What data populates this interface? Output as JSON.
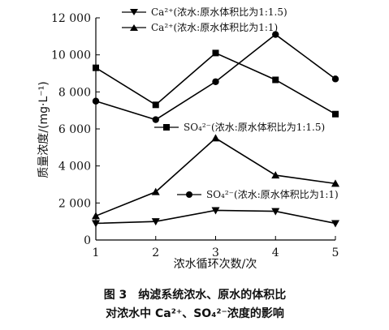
{
  "chart_data": {
    "type": "line",
    "xlabel": "浓水循环次数/次",
    "ylabel": "质量浓度/(mg·L⁻¹)",
    "x": [
      1,
      2,
      3,
      4,
      5
    ],
    "xlim": [
      1,
      5
    ],
    "ylim": [
      0,
      12000
    ],
    "yticks": [
      0,
      2000,
      4000,
      6000,
      8000,
      10000,
      12000
    ],
    "ytick_labels": [
      "0",
      "2 000",
      "4 000",
      "6 000",
      "8 000",
      "10 000",
      "12 000"
    ],
    "xtick_labels": [
      "1",
      "2",
      "3",
      "4",
      "5"
    ],
    "grid": false,
    "series": [
      {
        "name": "Ca²⁺(浓水:原水体积比为1:1.5)",
        "marker": "triangle-down",
        "values": [
          900,
          1000,
          1600,
          1550,
          900
        ]
      },
      {
        "name": "Ca²⁺(浓水:原水体积比为1:1)",
        "marker": "triangle-up",
        "values": [
          1300,
          2600,
          5500,
          3500,
          3050
        ]
      },
      {
        "name": "SO₄²⁻(浓水:原水体积比为1:1.5)",
        "marker": "square",
        "values": [
          9300,
          7300,
          10100,
          8650,
          6800
        ]
      },
      {
        "name": "SO₄²⁻(浓水:原水体积比为1:1)",
        "marker": "circle",
        "values": [
          7500,
          6500,
          8550,
          11100,
          8700
        ]
      }
    ]
  },
  "caption": {
    "line1": "图 3　纳滤系统浓水、原水的体积比",
    "line2": "对浓水中 Ca²⁺、SO₄²⁻浓度的影响"
  }
}
